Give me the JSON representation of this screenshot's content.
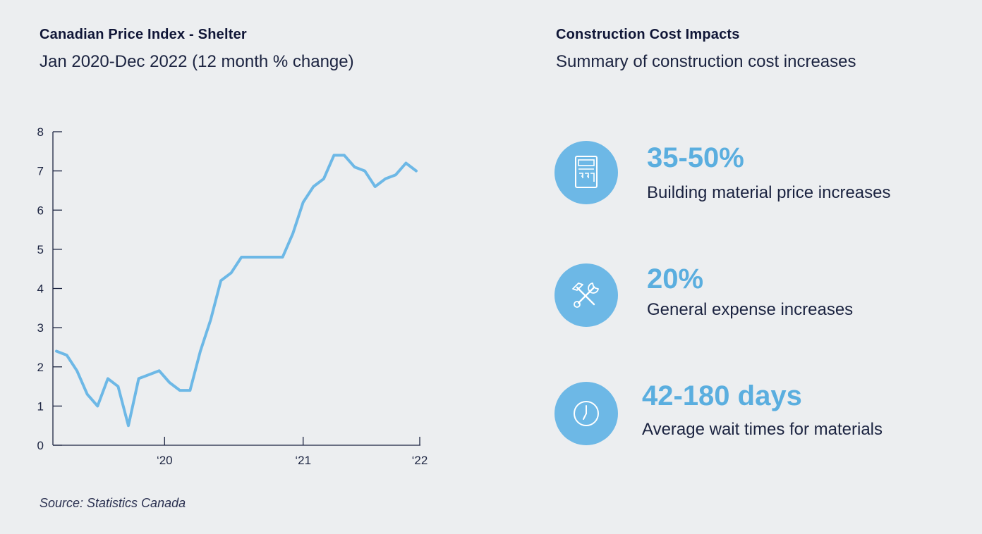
{
  "left": {
    "title": "Canadian Price Index - Shelter",
    "subtitle": "Jan 2020-Dec 2022 (12 month % change)",
    "source": "Source: Statistics Canada"
  },
  "chart_data": {
    "type": "line",
    "title": "Canadian Price Index - Shelter",
    "subtitle": "Jan 2020-Dec 2022 (12 month % change)",
    "xlabel": "",
    "ylabel": "",
    "ylim": [
      0,
      8
    ],
    "yticks": [
      0,
      1,
      2,
      3,
      4,
      5,
      6,
      7,
      8
    ],
    "x_tick_labels": [
      {
        "label": "‘20",
        "index": 11
      },
      {
        "label": "‘21",
        "index": 24
      },
      {
        "label": "‘22",
        "index": 35
      }
    ],
    "line_color": "#6db8e6",
    "grid": false,
    "x": [
      0,
      1,
      2,
      3,
      4,
      5,
      6,
      7,
      8,
      9,
      10,
      11,
      12,
      13,
      14,
      15,
      16,
      17,
      18,
      19,
      20,
      21,
      22,
      23,
      24,
      25,
      26,
      27,
      28,
      29,
      30,
      31,
      32,
      33,
      34,
      35
    ],
    "series": [
      {
        "values": [
          2.4,
          2.3,
          1.9,
          1.3,
          1.0,
          1.7,
          1.5,
          0.5,
          1.7,
          1.8,
          1.9,
          1.6,
          1.4,
          1.4,
          2.4,
          3.2,
          4.2,
          4.4,
          4.8,
          4.8,
          4.8,
          4.8,
          4.8,
          5.4,
          6.2,
          6.6,
          6.8,
          7.4,
          7.4,
          7.1,
          7.0,
          6.6,
          6.8,
          6.9,
          7.2,
          7.0
        ]
      }
    ]
  },
  "right": {
    "title": "Construction Cost Impacts",
    "subtitle": "Summary of construction cost increases",
    "stats": [
      {
        "icon": "calculator-icon",
        "value": "35-50%",
        "label": "Building material price increases"
      },
      {
        "icon": "tools-icon",
        "value": "20%",
        "label": "General expense increases"
      },
      {
        "icon": "clock-icon",
        "value": "42-180 days",
        "label": "Average wait times for materials"
      }
    ]
  },
  "colors": {
    "background": "#eceef0",
    "accent": "#6db8e6",
    "value_text": "#5aaedf",
    "heading_text": "#0f1536"
  }
}
